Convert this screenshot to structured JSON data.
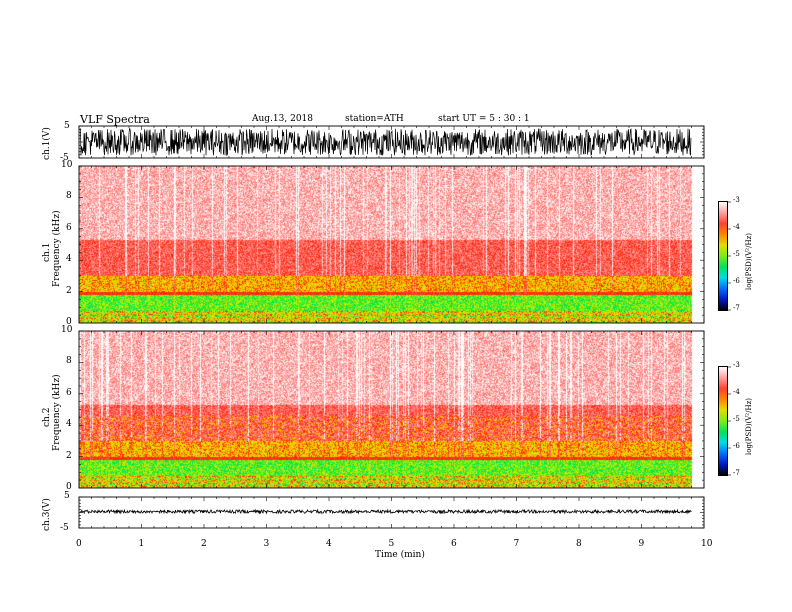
{
  "header": {
    "title": "VLF  Spectra",
    "date": "Aug.13, 2018",
    "station": "station=ATH",
    "start": "start  UT  =    5  : 30 : 1"
  },
  "chart_data": [
    {
      "type": "line",
      "name": "ch1-waveform",
      "ylabel": "ch.1(V)",
      "ylim": [
        -5,
        5
      ],
      "yticks": [
        "5",
        "-5"
      ],
      "xlim": [
        0,
        10
      ],
      "data_until_min": 9.8,
      "description_values": {
        "amplitude": 4.2
      }
    },
    {
      "type": "heatmap",
      "name": "ch1-spectrogram",
      "ylabel": "ch.1\nFrequency  (kHz)",
      "ylim": [
        0,
        10
      ],
      "yticks": [
        "0",
        "2",
        "4",
        "6",
        "8",
        "10"
      ],
      "xlim": [
        0,
        10
      ],
      "data_until_min": 9.8,
      "colorbar": {
        "label": "log(PSD)(V²/Hz)",
        "range": [
          -7,
          -3
        ],
        "ticks": [
          "-3",
          "-4",
          "-5",
          "-6",
          "-7"
        ]
      }
    },
    {
      "type": "heatmap",
      "name": "ch2-spectrogram",
      "ylabel": "ch.2\nFrequency  (kHz)",
      "ylim": [
        0,
        10
      ],
      "yticks": [
        "0",
        "2",
        "4",
        "6",
        "8",
        "10"
      ],
      "xlim": [
        0,
        10
      ],
      "data_until_min": 9.8,
      "colorbar": {
        "label": "log(PSD)(V²/Hz)",
        "range": [
          -7,
          -3
        ],
        "ticks": [
          "-3",
          "-4",
          "-5",
          "-6",
          "-7"
        ]
      }
    },
    {
      "type": "line",
      "name": "ch3-waveform",
      "ylabel": "ch.3(V)",
      "ylim": [
        -5,
        5
      ],
      "yticks": [
        "5",
        "-5"
      ],
      "xlim": [
        0,
        10
      ],
      "data_until_min": 9.8,
      "xlabel": "Time  (min)",
      "xticks": [
        "0",
        "1",
        "2",
        "3",
        "4",
        "5",
        "6",
        "7",
        "8",
        "9",
        "10"
      ]
    }
  ],
  "labels": {
    "ch1v": "ch.1(V)",
    "ch1f_a": "ch.1",
    "ch1f_b": "Frequency  (kHz)",
    "ch2f_a": "ch.2",
    "ch2f_b": "Frequency  (kHz)",
    "ch3v": "ch.3(V)",
    "xlabel": "Time  (min)",
    "cbar_label": "log(PSD)(V²/Hz)"
  }
}
